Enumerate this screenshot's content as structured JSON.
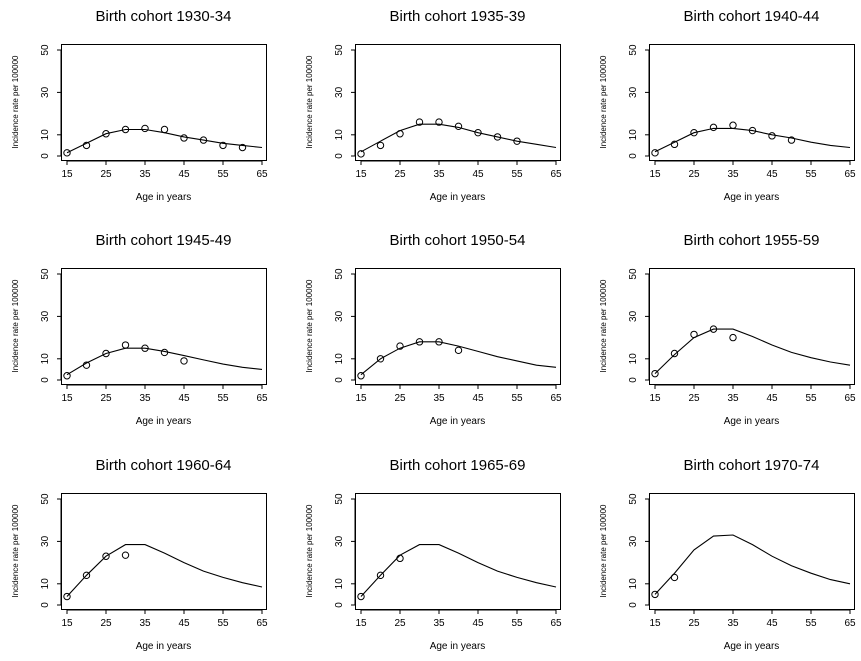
{
  "chart_data": [
    {
      "type": "line",
      "title": "Birth cohort 1930-34",
      "xlabel": "Age in years",
      "ylabel": "Incidence rate per 100000",
      "xlim": [
        15,
        65
      ],
      "ylim": [
        0,
        50
      ],
      "xticks": [
        "15",
        "25",
        "35",
        "45",
        "55",
        "65"
      ],
      "yticks": [
        "0",
        "10",
        "30",
        "50"
      ],
      "series": [
        {
          "kind": "line",
          "x": [
            15,
            20,
            25,
            30,
            35,
            40,
            45,
            50,
            55,
            60,
            65
          ],
          "y": [
            1.5,
            6,
            10.5,
            12.5,
            12.5,
            11,
            9,
            7.5,
            6,
            5,
            4
          ]
        },
        {
          "kind": "points",
          "x": [
            15,
            20,
            25,
            30,
            35,
            40,
            45,
            50,
            55,
            60
          ],
          "y": [
            1.5,
            5,
            10.5,
            12.5,
            13,
            12.5,
            8.5,
            7.5,
            5,
            4
          ]
        }
      ]
    },
    {
      "type": "line",
      "title": "Birth cohort 1935-39",
      "xlabel": "Age in years",
      "ylabel": "Incidence rate per 100000",
      "xlim": [
        15,
        65
      ],
      "ylim": [
        0,
        50
      ],
      "xticks": [
        "15",
        "25",
        "35",
        "45",
        "55",
        "65"
      ],
      "yticks": [
        "0",
        "10",
        "30",
        "50"
      ],
      "series": [
        {
          "kind": "line",
          "x": [
            15,
            20,
            25,
            30,
            35,
            40,
            45,
            50,
            55,
            60,
            65
          ],
          "y": [
            2,
            7,
            12,
            15,
            15,
            13.5,
            11,
            9,
            7,
            5.5,
            4
          ]
        },
        {
          "kind": "points",
          "x": [
            15,
            20,
            25,
            30,
            35,
            40,
            45,
            50,
            55
          ],
          "y": [
            1,
            5,
            10.5,
            16,
            16,
            14,
            11,
            9,
            7
          ]
        }
      ]
    },
    {
      "type": "line",
      "title": "Birth cohort 1940-44",
      "xlabel": "Age in years",
      "ylabel": "Incidence rate per 100000",
      "xlim": [
        15,
        65
      ],
      "ylim": [
        0,
        50
      ],
      "xticks": [
        "15",
        "25",
        "35",
        "45",
        "55",
        "65"
      ],
      "yticks": [
        "0",
        "10",
        "30",
        "50"
      ],
      "series": [
        {
          "kind": "line",
          "x": [
            15,
            20,
            25,
            30,
            35,
            40,
            45,
            50,
            55,
            60,
            65
          ],
          "y": [
            2,
            6.5,
            11,
            13,
            13,
            12,
            10,
            8.5,
            6.5,
            5,
            4
          ]
        },
        {
          "kind": "points",
          "x": [
            15,
            20,
            25,
            30,
            35,
            40,
            45,
            50
          ],
          "y": [
            1.5,
            5.5,
            11,
            13.5,
            14.5,
            12,
            9.5,
            7.5
          ]
        }
      ]
    },
    {
      "type": "line",
      "title": "Birth cohort 1945-49",
      "xlabel": "Age in years",
      "ylabel": "Incidence rate per 100000",
      "xlim": [
        15,
        65
      ],
      "ylim": [
        0,
        50
      ],
      "xticks": [
        "15",
        "25",
        "35",
        "45",
        "55",
        "65"
      ],
      "yticks": [
        "0",
        "10",
        "30",
        "50"
      ],
      "series": [
        {
          "kind": "line",
          "x": [
            15,
            20,
            25,
            30,
            35,
            40,
            45,
            50,
            55,
            60,
            65
          ],
          "y": [
            2.5,
            8,
            12.5,
            15,
            15,
            13.5,
            11.5,
            9.5,
            7.5,
            6,
            5
          ]
        },
        {
          "kind": "points",
          "x": [
            15,
            20,
            25,
            30,
            35,
            40,
            45
          ],
          "y": [
            2,
            7,
            12.5,
            16.5,
            15,
            13,
            9
          ]
        }
      ]
    },
    {
      "type": "line",
      "title": "Birth cohort 1950-54",
      "xlabel": "Age in years",
      "ylabel": "Incidence rate per 100000",
      "xlim": [
        15,
        65
      ],
      "ylim": [
        0,
        50
      ],
      "xticks": [
        "15",
        "25",
        "35",
        "45",
        "55",
        "65"
      ],
      "yticks": [
        "0",
        "10",
        "30",
        "50"
      ],
      "series": [
        {
          "kind": "line",
          "x": [
            15,
            20,
            25,
            30,
            35,
            40,
            45,
            50,
            55,
            60,
            65
          ],
          "y": [
            2.5,
            10,
            15,
            18,
            18,
            16,
            13.5,
            11,
            9,
            7,
            6
          ]
        },
        {
          "kind": "points",
          "x": [
            15,
            20,
            25,
            30,
            35,
            40
          ],
          "y": [
            2,
            10,
            16,
            18,
            18,
            14
          ]
        }
      ]
    },
    {
      "type": "line",
      "title": "Birth cohort 1955-59",
      "xlabel": "Age in years",
      "ylabel": "Incidence rate per 100000",
      "xlim": [
        15,
        65
      ],
      "ylim": [
        0,
        50
      ],
      "xticks": [
        "15",
        "25",
        "35",
        "45",
        "55",
        "65"
      ],
      "yticks": [
        "0",
        "10",
        "30",
        "50"
      ],
      "series": [
        {
          "kind": "line",
          "x": [
            15,
            20,
            25,
            30,
            35,
            40,
            45,
            50,
            55,
            60,
            65
          ],
          "y": [
            3,
            12,
            20,
            24,
            24,
            20.5,
            16.5,
            13,
            10.5,
            8.5,
            7
          ]
        },
        {
          "kind": "points",
          "x": [
            15,
            20,
            25,
            30,
            35
          ],
          "y": [
            3,
            12.5,
            21.5,
            24,
            20
          ]
        }
      ]
    },
    {
      "type": "line",
      "title": "Birth cohort 1960-64",
      "xlabel": "Age in years",
      "ylabel": "Incidence rate per 100000",
      "xlim": [
        15,
        65
      ],
      "ylim": [
        0,
        50
      ],
      "xticks": [
        "15",
        "25",
        "35",
        "45",
        "55",
        "65"
      ],
      "yticks": [
        "0",
        "10",
        "30",
        "50"
      ],
      "series": [
        {
          "kind": "line",
          "x": [
            15,
            20,
            25,
            30,
            35,
            40,
            45,
            50,
            55,
            60,
            65
          ],
          "y": [
            4,
            14,
            23,
            28.5,
            28.5,
            24.5,
            20,
            16,
            13,
            10.5,
            8.5
          ]
        },
        {
          "kind": "points",
          "x": [
            15,
            20,
            25,
            30
          ],
          "y": [
            4,
            14,
            23,
            23.5
          ]
        }
      ]
    },
    {
      "type": "line",
      "title": "Birth cohort 1965-69",
      "xlabel": "Age in years",
      "ylabel": "Incidence rate per 100000",
      "xlim": [
        15,
        65
      ],
      "ylim": [
        0,
        50
      ],
      "xticks": [
        "15",
        "25",
        "35",
        "45",
        "55",
        "65"
      ],
      "yticks": [
        "0",
        "10",
        "30",
        "50"
      ],
      "series": [
        {
          "kind": "line",
          "x": [
            15,
            20,
            25,
            30,
            35,
            40,
            45,
            50,
            55,
            60,
            65
          ],
          "y": [
            4,
            14,
            23.5,
            28.5,
            28.5,
            24.5,
            20,
            16,
            13,
            10.5,
            8.5
          ]
        },
        {
          "kind": "points",
          "x": [
            15,
            20,
            25
          ],
          "y": [
            4,
            14,
            22
          ]
        }
      ]
    },
    {
      "type": "line",
      "title": "Birth cohort 1970-74",
      "xlabel": "Age in years",
      "ylabel": "Incidence rate per 100000",
      "xlim": [
        15,
        65
      ],
      "ylim": [
        0,
        50
      ],
      "xticks": [
        "15",
        "25",
        "35",
        "45",
        "55",
        "65"
      ],
      "yticks": [
        "0",
        "10",
        "30",
        "50"
      ],
      "series": [
        {
          "kind": "line",
          "x": [
            15,
            20,
            25,
            30,
            35,
            40,
            45,
            50,
            55,
            60,
            65
          ],
          "y": [
            5,
            15,
            26,
            32.5,
            33,
            28.5,
            23,
            18.5,
            15,
            12,
            10
          ]
        },
        {
          "kind": "points",
          "x": [
            15,
            20
          ],
          "y": [
            5,
            13
          ]
        }
      ]
    }
  ]
}
